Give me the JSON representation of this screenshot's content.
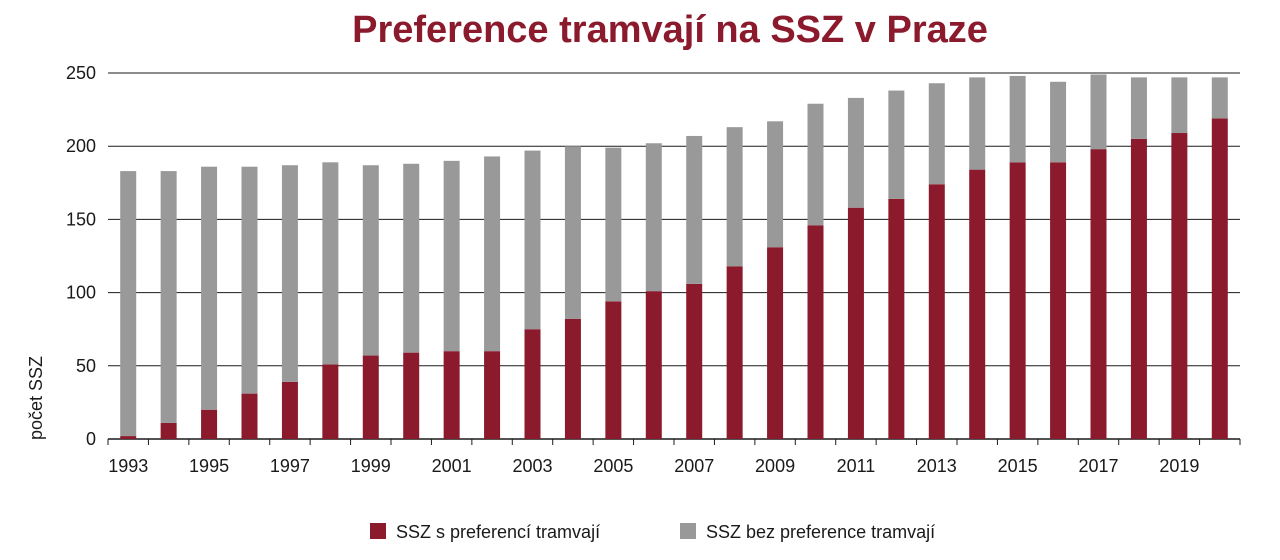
{
  "chart_data": {
    "type": "bar",
    "stacked": true,
    "title": "Preference tramvají na SSZ v Praze",
    "ylabel": "počet SSZ",
    "xlabel": "",
    "ylim": [
      0,
      250
    ],
    "yticks": [
      0,
      50,
      100,
      150,
      200,
      250
    ],
    "xtick_labels": [
      "1993",
      "1995",
      "1997",
      "1999",
      "2001",
      "2003",
      "2005",
      "2007",
      "2009",
      "2011",
      "2013",
      "2015",
      "2017",
      "2019"
    ],
    "categories": [
      "1993",
      "1994",
      "1995",
      "1996",
      "1997",
      "1998",
      "1999",
      "2000",
      "2001",
      "2002",
      "2003",
      "2004",
      "2005",
      "2006",
      "2007",
      "2008",
      "2009",
      "2010",
      "2011",
      "2012",
      "2013",
      "2014",
      "2015",
      "2016",
      "2017",
      "2018",
      "2019",
      "2020"
    ],
    "series": [
      {
        "name": "SSZ s preferencí tramvají",
        "color": "#8b1a2c",
        "values": [
          2,
          11,
          20,
          31,
          39,
          51,
          57,
          59,
          60,
          60,
          75,
          82,
          94,
          101,
          106,
          118,
          131,
          146,
          158,
          164,
          174,
          184,
          189,
          189,
          198,
          205,
          209,
          219
        ]
      },
      {
        "name": "SSZ bez preference tramvají",
        "color": "#999999",
        "values": [
          181,
          172,
          166,
          155,
          148,
          138,
          130,
          129,
          130,
          133,
          122,
          118,
          105,
          101,
          101,
          95,
          86,
          83,
          75,
          74,
          69,
          63,
          59,
          55,
          51,
          42,
          38,
          28
        ]
      }
    ],
    "grid": true,
    "legend_position": "bottom-center",
    "title_color": "#8b1a2c"
  }
}
